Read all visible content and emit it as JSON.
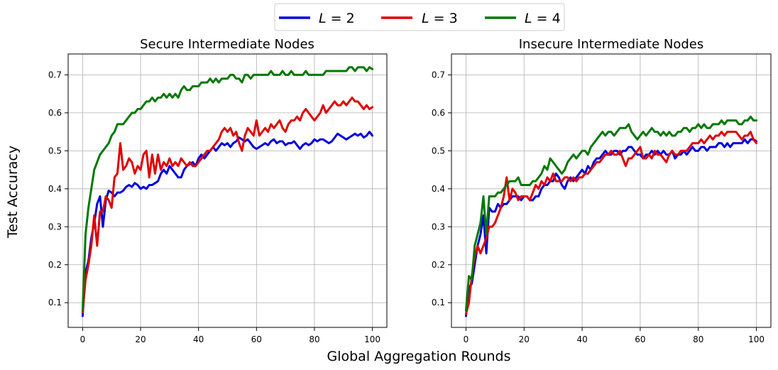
{
  "figure": {
    "xlabel": "Global Aggregation Rounds",
    "ylabel": "Test Accuracy"
  },
  "legend": {
    "placement": "top-center",
    "entries": [
      {
        "var": "L",
        "rest": " = 2",
        "color": "#0000dd"
      },
      {
        "var": "L",
        "rest": " = 3",
        "color": "#e00000"
      },
      {
        "var": "L",
        "rest": " = 4",
        "color": "#007800"
      }
    ]
  },
  "chart_data": [
    {
      "type": "line",
      "title": "Secure Intermediate Nodes",
      "xlim": [
        -5,
        105
      ],
      "ylim": [
        0.035,
        0.755
      ],
      "xticks": [
        0,
        20,
        40,
        60,
        80,
        100
      ],
      "yticks": [
        0.1,
        0.2,
        0.3,
        0.4,
        0.5,
        0.6,
        0.7
      ],
      "ytick_labels": [
        "0.1",
        "0.2",
        "0.3",
        "0.4",
        "0.5",
        "0.6",
        "0.7"
      ],
      "grid": true,
      "x": [
        0,
        1,
        2,
        3,
        4,
        5,
        6,
        7,
        8,
        9,
        10,
        11,
        12,
        13,
        14,
        15,
        16,
        17,
        18,
        19,
        20,
        21,
        22,
        23,
        24,
        25,
        26,
        27,
        28,
        29,
        30,
        31,
        32,
        33,
        34,
        35,
        36,
        37,
        38,
        39,
        40,
        41,
        42,
        43,
        44,
        45,
        46,
        47,
        48,
        49,
        50,
        51,
        52,
        53,
        54,
        55,
        56,
        57,
        58,
        59,
        60,
        61,
        62,
        63,
        64,
        65,
        66,
        67,
        68,
        69,
        70,
        71,
        72,
        73,
        74,
        75,
        76,
        77,
        78,
        79,
        80,
        81,
        82,
        83,
        84,
        85,
        86,
        87,
        88,
        89,
        90,
        91,
        92,
        93,
        94,
        95,
        96,
        97,
        98,
        99,
        100
      ],
      "series": [
        {
          "name": "L = 2",
          "color": "#0000dd",
          "values": [
            0.065,
            0.18,
            0.21,
            0.27,
            0.31,
            0.36,
            0.38,
            0.3,
            0.37,
            0.395,
            0.39,
            0.38,
            0.39,
            0.39,
            0.395,
            0.405,
            0.41,
            0.405,
            0.415,
            0.41,
            0.4,
            0.405,
            0.4,
            0.41,
            0.41,
            0.415,
            0.42,
            0.44,
            0.45,
            0.44,
            0.46,
            0.45,
            0.44,
            0.43,
            0.43,
            0.45,
            0.46,
            0.465,
            0.47,
            0.46,
            0.48,
            0.49,
            0.48,
            0.49,
            0.5,
            0.51,
            0.5,
            0.51,
            0.52,
            0.515,
            0.52,
            0.51,
            0.52,
            0.525,
            0.535,
            0.53,
            0.525,
            0.53,
            0.52,
            0.51,
            0.505,
            0.51,
            0.515,
            0.52,
            0.515,
            0.525,
            0.53,
            0.52,
            0.525,
            0.525,
            0.515,
            0.52,
            0.52,
            0.525,
            0.515,
            0.505,
            0.515,
            0.52,
            0.515,
            0.52,
            0.53,
            0.525,
            0.53,
            0.53,
            0.525,
            0.52,
            0.525,
            0.535,
            0.545,
            0.54,
            0.535,
            0.53,
            0.535,
            0.54,
            0.545,
            0.54,
            0.545,
            0.535,
            0.54,
            0.55,
            0.54
          ]
        },
        {
          "name": "L = 3",
          "color": "#e00000",
          "values": [
            0.075,
            0.16,
            0.2,
            0.25,
            0.33,
            0.25,
            0.34,
            0.34,
            0.38,
            0.37,
            0.35,
            0.43,
            0.44,
            0.52,
            0.45,
            0.46,
            0.48,
            0.47,
            0.44,
            0.46,
            0.45,
            0.49,
            0.5,
            0.43,
            0.49,
            0.44,
            0.49,
            0.45,
            0.47,
            0.46,
            0.48,
            0.46,
            0.47,
            0.46,
            0.48,
            0.47,
            0.46,
            0.47,
            0.46,
            0.46,
            0.47,
            0.48,
            0.49,
            0.5,
            0.5,
            0.51,
            0.52,
            0.53,
            0.55,
            0.56,
            0.55,
            0.56,
            0.54,
            0.55,
            0.52,
            0.5,
            0.54,
            0.56,
            0.55,
            0.54,
            0.58,
            0.54,
            0.55,
            0.56,
            0.55,
            0.57,
            0.56,
            0.57,
            0.58,
            0.56,
            0.55,
            0.57,
            0.58,
            0.58,
            0.59,
            0.58,
            0.6,
            0.61,
            0.6,
            0.59,
            0.58,
            0.59,
            0.6,
            0.62,
            0.6,
            0.61,
            0.62,
            0.63,
            0.62,
            0.62,
            0.63,
            0.62,
            0.63,
            0.64,
            0.63,
            0.63,
            0.62,
            0.61,
            0.62,
            0.61,
            0.615
          ]
        },
        {
          "name": "L = 4",
          "color": "#007800",
          "values": [
            0.08,
            0.28,
            0.35,
            0.4,
            0.45,
            0.47,
            0.49,
            0.5,
            0.51,
            0.52,
            0.54,
            0.55,
            0.57,
            0.57,
            0.57,
            0.58,
            0.59,
            0.6,
            0.6,
            0.61,
            0.61,
            0.62,
            0.63,
            0.63,
            0.64,
            0.63,
            0.64,
            0.64,
            0.65,
            0.64,
            0.65,
            0.64,
            0.65,
            0.64,
            0.66,
            0.67,
            0.66,
            0.66,
            0.67,
            0.67,
            0.67,
            0.68,
            0.68,
            0.68,
            0.69,
            0.68,
            0.69,
            0.68,
            0.69,
            0.69,
            0.69,
            0.7,
            0.7,
            0.69,
            0.69,
            0.68,
            0.7,
            0.7,
            0.69,
            0.7,
            0.7,
            0.7,
            0.7,
            0.7,
            0.7,
            0.71,
            0.7,
            0.7,
            0.7,
            0.71,
            0.7,
            0.7,
            0.71,
            0.7,
            0.7,
            0.7,
            0.7,
            0.71,
            0.7,
            0.7,
            0.7,
            0.7,
            0.7,
            0.7,
            0.71,
            0.71,
            0.71,
            0.71,
            0.71,
            0.71,
            0.71,
            0.71,
            0.72,
            0.72,
            0.71,
            0.72,
            0.72,
            0.72,
            0.71,
            0.72,
            0.715
          ]
        }
      ]
    },
    {
      "type": "line",
      "title": "Insecure Intermediate Nodes",
      "xlim": [
        -5,
        105
      ],
      "ylim": [
        0.035,
        0.755
      ],
      "xticks": [
        0,
        20,
        40,
        60,
        80,
        100
      ],
      "yticks": [
        0.1,
        0.2,
        0.3,
        0.4,
        0.5,
        0.6,
        0.7
      ],
      "ytick_labels": [
        "0.1",
        "0.2",
        "0.3",
        "0.4",
        "0.5",
        "0.6",
        "0.7"
      ],
      "grid": true,
      "x": [
        0,
        1,
        2,
        3,
        4,
        5,
        6,
        7,
        8,
        9,
        10,
        11,
        12,
        13,
        14,
        15,
        16,
        17,
        18,
        19,
        20,
        21,
        22,
        23,
        24,
        25,
        26,
        27,
        28,
        29,
        30,
        31,
        32,
        33,
        34,
        35,
        36,
        37,
        38,
        39,
        40,
        41,
        42,
        43,
        44,
        45,
        46,
        47,
        48,
        49,
        50,
        51,
        52,
        53,
        54,
        55,
        56,
        57,
        58,
        59,
        60,
        61,
        62,
        63,
        64,
        65,
        66,
        67,
        68,
        69,
        70,
        71,
        72,
        73,
        74,
        75,
        76,
        77,
        78,
        79,
        80,
        81,
        82,
        83,
        84,
        85,
        86,
        87,
        88,
        89,
        90,
        91,
        92,
        93,
        94,
        95,
        96,
        97,
        98,
        99,
        100
      ],
      "series": [
        {
          "name": "L = 2",
          "color": "#0000dd",
          "values": [
            0.065,
            0.14,
            0.15,
            0.2,
            0.25,
            0.28,
            0.33,
            0.23,
            0.35,
            0.34,
            0.34,
            0.36,
            0.35,
            0.36,
            0.36,
            0.37,
            0.38,
            0.38,
            0.38,
            0.37,
            0.38,
            0.38,
            0.37,
            0.37,
            0.38,
            0.38,
            0.4,
            0.41,
            0.41,
            0.42,
            0.42,
            0.44,
            0.43,
            0.41,
            0.4,
            0.42,
            0.43,
            0.42,
            0.43,
            0.44,
            0.45,
            0.44,
            0.46,
            0.45,
            0.47,
            0.48,
            0.48,
            0.49,
            0.5,
            0.49,
            0.49,
            0.5,
            0.5,
            0.49,
            0.5,
            0.5,
            0.51,
            0.51,
            0.5,
            0.49,
            0.49,
            0.48,
            0.49,
            0.49,
            0.5,
            0.49,
            0.5,
            0.49,
            0.5,
            0.49,
            0.49,
            0.5,
            0.48,
            0.49,
            0.49,
            0.5,
            0.49,
            0.5,
            0.51,
            0.5,
            0.5,
            0.51,
            0.51,
            0.5,
            0.51,
            0.51,
            0.51,
            0.52,
            0.52,
            0.51,
            0.52,
            0.51,
            0.52,
            0.52,
            0.52,
            0.52,
            0.53,
            0.52,
            0.53,
            0.53,
            0.525
          ]
        },
        {
          "name": "L = 3",
          "color": "#e00000",
          "values": [
            0.07,
            0.1,
            0.17,
            0.22,
            0.25,
            0.23,
            0.25,
            0.27,
            0.3,
            0.3,
            0.31,
            0.33,
            0.35,
            0.38,
            0.43,
            0.37,
            0.4,
            0.39,
            0.37,
            0.38,
            0.38,
            0.38,
            0.37,
            0.39,
            0.41,
            0.4,
            0.42,
            0.41,
            0.43,
            0.42,
            0.44,
            0.42,
            0.42,
            0.42,
            0.43,
            0.43,
            0.42,
            0.43,
            0.42,
            0.43,
            0.43,
            0.44,
            0.44,
            0.45,
            0.46,
            0.47,
            0.47,
            0.48,
            0.49,
            0.49,
            0.5,
            0.49,
            0.49,
            0.5,
            0.48,
            0.46,
            0.48,
            0.48,
            0.49,
            0.5,
            0.51,
            0.48,
            0.48,
            0.49,
            0.48,
            0.5,
            0.49,
            0.49,
            0.48,
            0.47,
            0.49,
            0.5,
            0.49,
            0.49,
            0.5,
            0.5,
            0.5,
            0.51,
            0.52,
            0.52,
            0.52,
            0.53,
            0.52,
            0.53,
            0.54,
            0.53,
            0.54,
            0.54,
            0.55,
            0.54,
            0.55,
            0.55,
            0.55,
            0.55,
            0.54,
            0.53,
            0.54,
            0.54,
            0.55,
            0.53,
            0.52
          ]
        },
        {
          "name": "L = 4",
          "color": "#007800",
          "values": [
            0.08,
            0.17,
            0.16,
            0.25,
            0.28,
            0.31,
            0.38,
            0.28,
            0.38,
            0.38,
            0.38,
            0.39,
            0.39,
            0.4,
            0.41,
            0.42,
            0.42,
            0.42,
            0.43,
            0.41,
            0.41,
            0.41,
            0.41,
            0.42,
            0.42,
            0.43,
            0.44,
            0.46,
            0.45,
            0.48,
            0.47,
            0.46,
            0.45,
            0.44,
            0.45,
            0.47,
            0.48,
            0.49,
            0.48,
            0.49,
            0.5,
            0.5,
            0.49,
            0.51,
            0.52,
            0.53,
            0.54,
            0.55,
            0.54,
            0.55,
            0.55,
            0.54,
            0.55,
            0.56,
            0.56,
            0.56,
            0.57,
            0.55,
            0.54,
            0.53,
            0.54,
            0.55,
            0.54,
            0.55,
            0.56,
            0.55,
            0.55,
            0.54,
            0.55,
            0.54,
            0.55,
            0.54,
            0.54,
            0.55,
            0.55,
            0.56,
            0.56,
            0.55,
            0.56,
            0.56,
            0.57,
            0.56,
            0.57,
            0.56,
            0.56,
            0.57,
            0.57,
            0.57,
            0.58,
            0.57,
            0.58,
            0.58,
            0.58,
            0.58,
            0.57,
            0.57,
            0.58,
            0.58,
            0.59,
            0.58,
            0.58
          ]
        }
      ]
    }
  ]
}
